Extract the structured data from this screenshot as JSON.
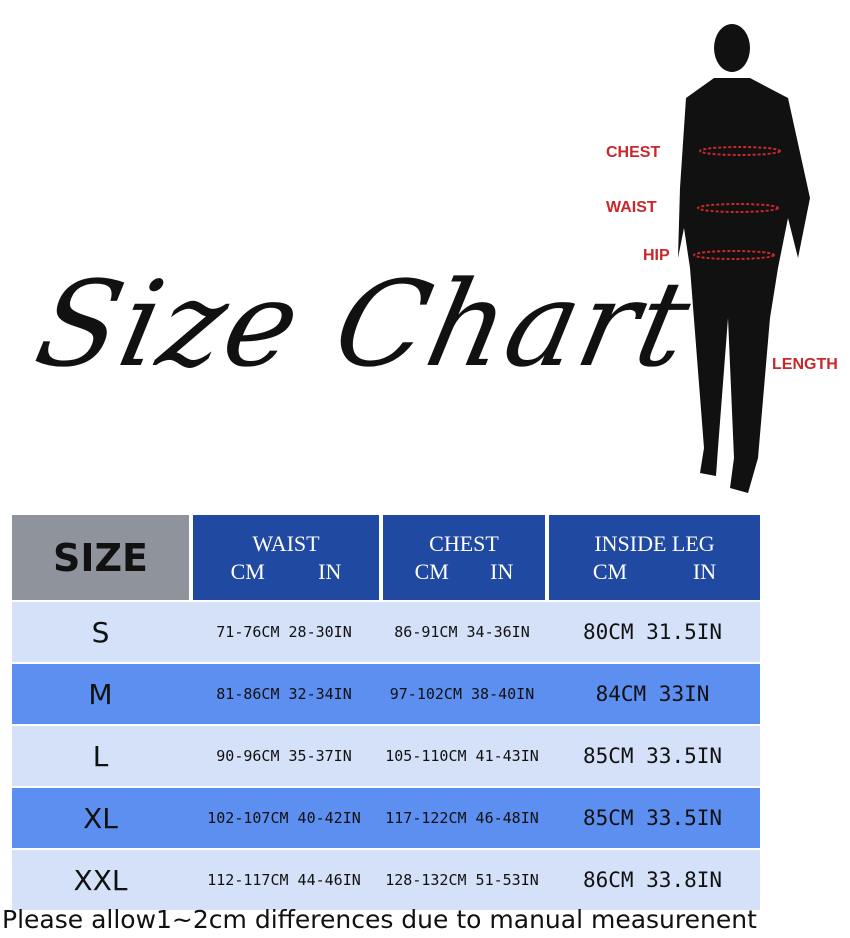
{
  "title": "Size Chart",
  "figure_labels": {
    "chest": "CHEST",
    "waist": "WAIST",
    "hip": "HIP",
    "length": "LENGTH"
  },
  "colors": {
    "header": "#2049a1",
    "size_header": "#8e939c",
    "row_light": "#d5e1f8",
    "row_dark": "#5d8ff0",
    "label_red": "#c8282c"
  },
  "table": {
    "headers": {
      "size": "SIZE",
      "waist": "WAIST",
      "chest": "CHEST",
      "inside_leg": "INSIDE LEG",
      "cm": "CM",
      "in": "IN"
    },
    "rows": [
      {
        "size": "S",
        "waist": "71-76CM 28-30IN",
        "chest": "86-91CM 34-36IN",
        "inside_leg": "80CM 31.5IN"
      },
      {
        "size": "M",
        "waist": "81-86CM 32-34IN",
        "chest": "97-102CM 38-40IN",
        "inside_leg": "84CM 33IN"
      },
      {
        "size": "L",
        "waist": "90-96CM 35-37IN",
        "chest": "105-110CM 41-43IN",
        "inside_leg": "85CM 33.5IN"
      },
      {
        "size": "XL",
        "waist": "102-107CM 40-42IN",
        "chest": "117-122CM 46-48IN",
        "inside_leg": "85CM 33.5IN"
      },
      {
        "size": "XXL",
        "waist": "112-117CM 44-46IN",
        "chest": "128-132CM 51-53IN",
        "inside_leg": "86CM 33.8IN"
      }
    ]
  },
  "footer": "Please allow1~2cm differences due to manual measurenent"
}
